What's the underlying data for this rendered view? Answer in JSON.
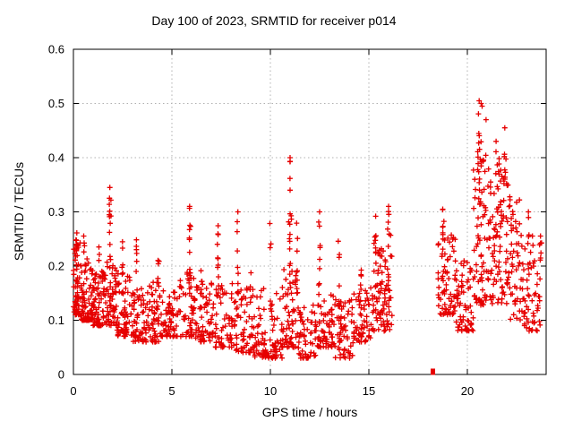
{
  "chart_data": {
    "type": "scatter",
    "title": "Day 100 of 2023, SRMTID for receiver p014",
    "xlabel": "GPS time / hours",
    "ylabel": "SRMTID / TECUs",
    "xlim": [
      0,
      24
    ],
    "ylim": [
      0,
      0.6
    ],
    "x_ticks": [
      0,
      5,
      10,
      15,
      20
    ],
    "x_tick_labels": [
      "0",
      "5",
      "10",
      "15",
      "20"
    ],
    "y_ticks": [
      0,
      0.1,
      0.2,
      0.3,
      0.4,
      0.5,
      0.6
    ],
    "y_tick_labels": [
      "0",
      "0.1",
      "0.2",
      "0.3",
      "0.4",
      "0.5",
      "0.6"
    ],
    "grid": true,
    "legend": "none",
    "marker": "plus",
    "marker_color": "#e60000",
    "grid_color": "#b0b0b0",
    "border_color": "#000000",
    "zero_marker": {
      "shape": "filled-square",
      "x": 18.25,
      "y": 0.005
    },
    "notable_points": [
      [
        1.85,
        0.345
      ],
      [
        5.9,
        0.31
      ],
      [
        8.35,
        0.3
      ],
      [
        11.0,
        0.4
      ],
      [
        11.0,
        0.34
      ],
      [
        12.5,
        0.3
      ],
      [
        16.0,
        0.31
      ],
      [
        18.75,
        0.305
      ],
      [
        20.6,
        0.505
      ],
      [
        20.7,
        0.5
      ],
      [
        20.75,
        0.495
      ],
      [
        20.95,
        0.47
      ],
      [
        21.9,
        0.455
      ],
      [
        23.1,
        0.3
      ]
    ],
    "scatter_model": {
      "bands_format": "[x_start_hr, x_end_hr, n_points, y_min_TECU, y_max_TECU, low_bias_exponent]",
      "bands": [
        [
          0.0,
          0.35,
          55,
          0.11,
          0.25,
          1.6
        ],
        [
          0.35,
          1.0,
          80,
          0.1,
          0.22,
          1.8
        ],
        [
          1.0,
          1.6,
          60,
          0.09,
          0.2,
          1.7
        ],
        [
          1.6,
          2.2,
          60,
          0.09,
          0.21,
          1.7
        ],
        [
          2.2,
          3.0,
          70,
          0.07,
          0.19,
          1.8
        ],
        [
          3.0,
          3.6,
          55,
          0.06,
          0.16,
          1.8
        ],
        [
          3.6,
          4.4,
          55,
          0.06,
          0.17,
          1.8
        ],
        [
          4.4,
          5.2,
          55,
          0.07,
          0.16,
          1.8
        ],
        [
          5.2,
          6.2,
          65,
          0.07,
          0.19,
          1.8
        ],
        [
          6.2,
          7.2,
          60,
          0.06,
          0.17,
          1.8
        ],
        [
          7.2,
          8.2,
          60,
          0.05,
          0.17,
          1.8
        ],
        [
          8.2,
          9.2,
          60,
          0.04,
          0.16,
          1.8
        ],
        [
          9.2,
          10.6,
          85,
          0.03,
          0.16,
          2.2
        ],
        [
          10.6,
          11.4,
          60,
          0.05,
          0.2,
          1.5
        ],
        [
          11.4,
          12.3,
          60,
          0.03,
          0.13,
          1.6
        ],
        [
          12.3,
          13.2,
          60,
          0.05,
          0.15,
          1.6
        ],
        [
          13.2,
          14.2,
          60,
          0.03,
          0.14,
          1.6
        ],
        [
          14.2,
          15.1,
          55,
          0.06,
          0.16,
          1.6
        ],
        [
          15.1,
          16.2,
          80,
          0.08,
          0.26,
          1.4
        ],
        [
          18.5,
          19.4,
          65,
          0.11,
          0.26,
          1.5
        ],
        [
          19.4,
          20.3,
          65,
          0.08,
          0.21,
          1.6
        ],
        [
          20.3,
          21.2,
          85,
          0.12,
          0.42,
          1.3
        ],
        [
          21.2,
          22.1,
          75,
          0.13,
          0.4,
          1.4
        ],
        [
          22.1,
          22.9,
          60,
          0.1,
          0.33,
          1.5
        ],
        [
          22.9,
          23.8,
          55,
          0.08,
          0.26,
          1.6
        ]
      ],
      "spikes_format": "[x_center_hr, x_halfwidth_hr, n_points, y_min_TECU, y_max_TECU]",
      "spikes": [
        [
          0.15,
          0.05,
          6,
          0.2,
          0.27
        ],
        [
          0.55,
          0.04,
          4,
          0.21,
          0.26
        ],
        [
          1.3,
          0.05,
          5,
          0.18,
          0.24
        ],
        [
          1.85,
          0.06,
          12,
          0.2,
          0.345
        ],
        [
          2.5,
          0.05,
          6,
          0.17,
          0.25
        ],
        [
          3.2,
          0.05,
          7,
          0.15,
          0.26
        ],
        [
          4.3,
          0.05,
          6,
          0.15,
          0.22
        ],
        [
          5.9,
          0.06,
          9,
          0.16,
          0.31
        ],
        [
          6.5,
          0.05,
          5,
          0.14,
          0.21
        ],
        [
          7.35,
          0.06,
          9,
          0.15,
          0.28
        ],
        [
          8.35,
          0.06,
          8,
          0.14,
          0.3
        ],
        [
          9.0,
          0.04,
          4,
          0.12,
          0.19
        ],
        [
          10.0,
          0.05,
          5,
          0.12,
          0.28
        ],
        [
          11.0,
          0.08,
          15,
          0.15,
          0.4
        ],
        [
          11.35,
          0.05,
          6,
          0.12,
          0.31
        ],
        [
          12.5,
          0.06,
          9,
          0.12,
          0.3
        ],
        [
          13.5,
          0.06,
          8,
          0.12,
          0.25
        ],
        [
          14.6,
          0.05,
          5,
          0.12,
          0.2
        ],
        [
          15.35,
          0.06,
          9,
          0.15,
          0.3
        ],
        [
          16.0,
          0.08,
          11,
          0.15,
          0.31
        ],
        [
          18.75,
          0.08,
          12,
          0.15,
          0.305
        ],
        [
          20.65,
          0.12,
          16,
          0.25,
          0.505
        ],
        [
          21.5,
          0.1,
          9,
          0.25,
          0.44
        ],
        [
          21.9,
          0.06,
          7,
          0.3,
          0.46
        ],
        [
          23.1,
          0.06,
          6,
          0.15,
          0.3
        ]
      ],
      "data_gap_hours": [
        16.2,
        18.5
      ]
    }
  }
}
